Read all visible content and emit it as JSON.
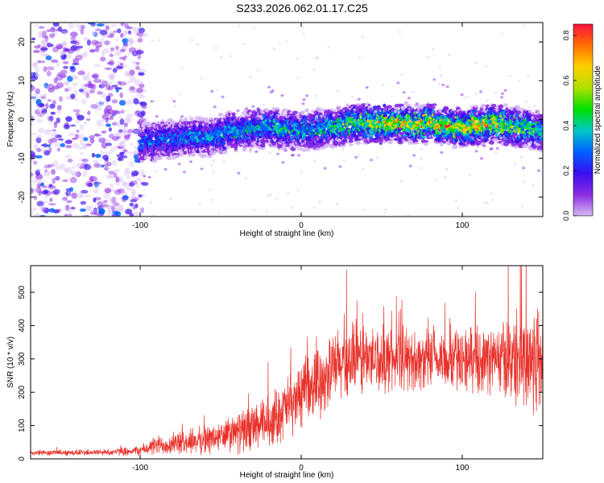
{
  "title": "S233.2026.062.01.17.C25",
  "colors": {
    "snr_line": "#e8322b",
    "axis": "#000000",
    "colorbar_stops": [
      "#d6b8f5",
      "#8a2be2",
      "#3a0ff0",
      "#0060ff",
      "#00c8c8",
      "#00e000",
      "#b0e000",
      "#ffd000",
      "#ff7000",
      "#ff1040"
    ]
  },
  "chart_data": [
    {
      "type": "heatmap",
      "name": "spectrogram",
      "title": "",
      "xlabel": "Height of straight line (km)",
      "ylabel": "Frequency (Hz)",
      "xlim": [
        -168,
        150
      ],
      "ylim": [
        -25,
        25
      ],
      "xticks": [
        -100,
        0,
        100
      ],
      "xtick_labels": [
        "-100",
        "0",
        "100"
      ],
      "yticks": [
        -20,
        -10,
        0,
        10,
        20
      ],
      "ytick_labels": [
        "-20",
        "-10",
        "0",
        "10",
        "20"
      ],
      "colorbar": {
        "label": "Normalized spectral amplitude",
        "range": [
          0,
          0.85
        ],
        "ticks": [
          0,
          0.2,
          0.4,
          0.6,
          0.8
        ],
        "tick_labels": [
          "0.0",
          "0.2",
          "0.4",
          "0.6",
          "0.8"
        ]
      },
      "signal_band": {
        "x": [
          -100,
          -80,
          -60,
          -40,
          -20,
          0,
          20,
          40,
          60,
          80,
          100,
          120,
          150
        ],
        "center_hz": [
          -6,
          -5,
          -4.5,
          -3,
          -2,
          -3,
          -2,
          -1,
          -1,
          -1,
          -2,
          -1,
          -3
        ],
        "peak_amplitude": [
          0.35,
          0.38,
          0.4,
          0.45,
          0.5,
          0.45,
          0.5,
          0.7,
          0.75,
          0.8,
          0.8,
          0.75,
          0.5
        ]
      },
      "noise_region_x": [
        -168,
        -100
      ]
    },
    {
      "type": "line",
      "name": "snr",
      "title": "",
      "xlabel": "Height of straight line (km)",
      "ylabel": "SNR (10 * v/v)",
      "xlim": [
        -168,
        150
      ],
      "ylim": [
        0,
        580
      ],
      "xticks": [
        -100,
        0,
        100
      ],
      "xtick_labels": [
        "-100",
        "0",
        "100"
      ],
      "yticks": [
        0,
        100,
        200,
        300,
        400,
        500
      ],
      "ytick_labels": [
        "0",
        "100",
        "200",
        "300",
        "400",
        "500"
      ],
      "trend": {
        "x": [
          -168,
          -120,
          -100,
          -90,
          -70,
          -50,
          -35,
          -20,
          -10,
          0,
          10,
          20,
          30,
          40,
          60,
          80,
          100,
          120,
          135,
          150
        ],
        "mean": [
          18,
          20,
          25,
          40,
          50,
          65,
          85,
          110,
          150,
          190,
          230,
          270,
          295,
          300,
          300,
          295,
          300,
          300,
          300,
          300
        ],
        "spread": [
          8,
          10,
          15,
          30,
          35,
          50,
          65,
          80,
          90,
          95,
          100,
          110,
          120,
          110,
          90,
          90,
          95,
          100,
          150,
          200
        ]
      }
    }
  ]
}
